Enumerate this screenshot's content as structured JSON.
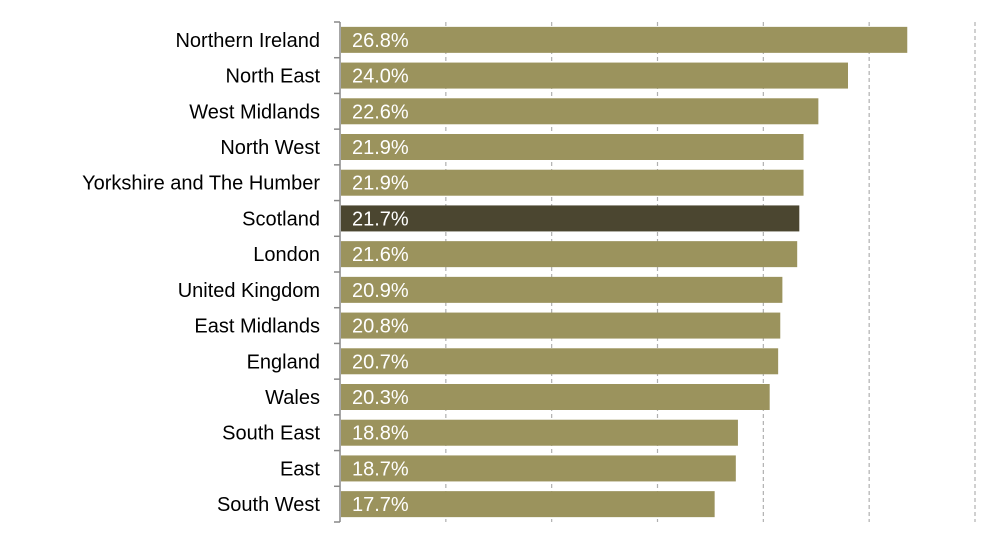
{
  "chart_data": {
    "type": "bar",
    "orientation": "horizontal",
    "categories": [
      "Northern Ireland",
      "North East",
      "West Midlands",
      "North West",
      "Yorkshire and The Humber",
      "Scotland",
      "London",
      "United Kingdom",
      "East Midlands",
      "England",
      "Wales",
      "South East",
      "East",
      "South West"
    ],
    "values": [
      26.8,
      24.0,
      22.6,
      21.9,
      21.9,
      21.7,
      21.6,
      20.9,
      20.8,
      20.7,
      20.3,
      18.8,
      18.7,
      17.7
    ],
    "labels": [
      "26.8%",
      "24.0%",
      "22.6%",
      "21.9%",
      "21.9%",
      "21.7%",
      "21.6%",
      "20.9%",
      "20.8%",
      "20.7%",
      "20.3%",
      "18.8%",
      "18.7%",
      "17.7%"
    ],
    "highlight": "Scotland",
    "xlim": [
      0,
      30
    ],
    "grid_step": 5,
    "grid": "vertical dashed",
    "colors": {
      "bar": "#9b935d",
      "highlight": "#4b4630",
      "label": "#ffffff",
      "grid": "#b0b0b0",
      "axis": "#888888"
    }
  }
}
